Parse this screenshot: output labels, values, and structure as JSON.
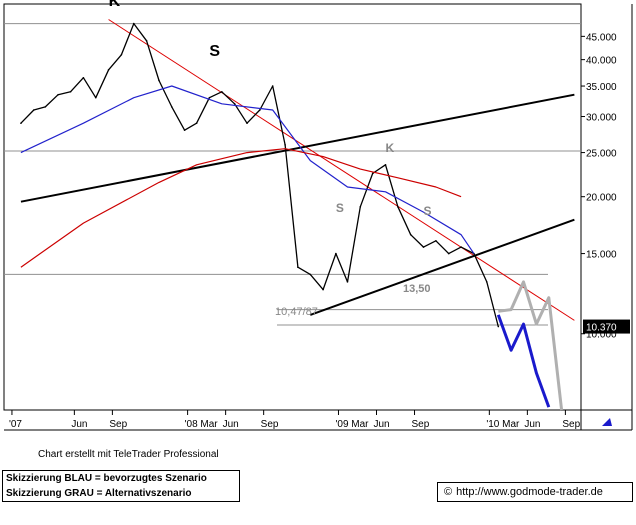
{
  "chart_data": {
    "type": "line",
    "title": "",
    "xlabel": "",
    "ylabel": "",
    "y_scale": "log",
    "ylim": [
      6.8,
      53
    ],
    "x_ticks": [
      "'07",
      "Jun",
      "Sep",
      "'08 Mar",
      "Jun",
      "Sep",
      "'09 Mar",
      "Jun",
      "Sep",
      "'10 Mar",
      "Jun",
      "Sep"
    ],
    "y_ticks": [
      "45.000",
      "40.000",
      "35.000",
      "30.000",
      "25.000",
      "20.000",
      "15.000",
      "10.000"
    ],
    "last_price_label": "10.370",
    "last_price": 10.37,
    "annotations": {
      "head": "K",
      "shoulder_left_2008": "S",
      "shoulder_left_2009": "S",
      "head_2009": "K",
      "shoulder_right_2009": "S",
      "low_label": "10,47/87",
      "neckline_label": "13,50"
    },
    "colors": {
      "price": "#000000",
      "ma_short": "#2222cc",
      "ma_long": "#cc0000",
      "trendline_red": "#dd0000",
      "trendline_black": "#000000",
      "scenario_blue": "#1a1acc",
      "scenario_grey": "#b0b0b0",
      "hlines": "#909090"
    },
    "series": [
      {
        "name": "",
        "role": "price",
        "x": [
          "2007-01",
          "2007-02",
          "2007-03",
          "2007-04",
          "2007-05",
          "2007-06",
          "2007-07",
          "2007-08",
          "2007-09",
          "2007-10",
          "2007-11",
          "2007-12",
          "2008-01",
          "2008-02",
          "2008-03",
          "2008-04",
          "2008-05",
          "2008-06",
          "2008-07",
          "2008-08",
          "2008-09",
          "2008-10",
          "2008-11",
          "2008-12",
          "2009-01",
          "2009-02",
          "2009-03",
          "2009-04",
          "2009-05",
          "2009-06",
          "2009-07",
          "2009-08",
          "2009-09",
          "2009-10",
          "2009-11",
          "2009-12",
          "2010-01",
          "2010-02",
          "2010-03"
        ],
        "values": [
          29.0,
          31.0,
          31.5,
          33.5,
          34.0,
          36.5,
          33.0,
          38.0,
          41.0,
          48.0,
          44.0,
          36.0,
          31.5,
          28.0,
          29.0,
          33.0,
          34.0,
          32.0,
          29.0,
          31.0,
          35.0,
          26.0,
          14.0,
          13.5,
          12.5,
          15.0,
          13.0,
          19.0,
          22.5,
          23.5,
          19.0,
          16.5,
          15.5,
          16.0,
          15.0,
          15.5,
          15.0,
          13.0,
          10.37
        ]
      },
      {
        "name": "",
        "role": "ma_short",
        "x": [
          "2007-01",
          "2007-06",
          "2007-10",
          "2008-01",
          "2008-05",
          "2008-09",
          "2008-12",
          "2009-03",
          "2009-06",
          "2009-09",
          "2009-12",
          "2010-01"
        ],
        "values": [
          25.0,
          29.0,
          33.0,
          35.0,
          32.0,
          31.0,
          24.0,
          21.0,
          20.5,
          18.5,
          16.5,
          15.0
        ]
      },
      {
        "name": "",
        "role": "ma_long",
        "x": [
          "2007-01",
          "2007-06",
          "2007-12",
          "2008-03",
          "2008-07",
          "2008-10",
          "2009-01",
          "2009-04",
          "2009-07",
          "2009-10",
          "2009-12"
        ],
        "values": [
          14.0,
          17.5,
          21.5,
          23.5,
          25.0,
          25.5,
          24.5,
          23.0,
          22.0,
          21.0,
          20.0
        ]
      },
      {
        "name": "Skizzierung BLAU",
        "role": "scenario_blue",
        "x": [
          "2010-03",
          "2010-04",
          "2010-05",
          "2010-06",
          "2010-07"
        ],
        "values": [
          11.0,
          9.2,
          10.5,
          8.2,
          6.9
        ]
      },
      {
        "name": "Skizzierung GRAU",
        "role": "scenario_grey",
        "x": [
          "2010-03",
          "2010-04",
          "2010-05",
          "2010-06",
          "2010-07",
          "2010-08"
        ],
        "values": [
          11.2,
          11.3,
          13.0,
          10.5,
          12.0,
          6.8
        ]
      }
    ],
    "trendlines": [
      {
        "role": "red_downtrend",
        "from": [
          "2007-08",
          49.0
        ],
        "to": [
          "2010-09",
          10.7
        ]
      },
      {
        "role": "black_uptrend_long",
        "from": [
          "2007-01",
          19.5
        ],
        "to": [
          "2010-09",
          33.5
        ]
      },
      {
        "role": "black_neckline",
        "from": [
          "2008-12",
          11.0
        ],
        "to": [
          "2010-09",
          17.8
        ]
      }
    ],
    "horizontal_lines": [
      48.0,
      25.2,
      13.5,
      11.3,
      10.45
    ],
    "grid": false,
    "credit": "Chart erstellt mit TeleTrader Professional",
    "legend": [
      "Skizzierung BLAU = bevorzugtes Szenario",
      "Skizzierung GRAU = Alternativszenario"
    ],
    "source": "http://www.godmode-trader.de",
    "source_prefix": "©"
  }
}
